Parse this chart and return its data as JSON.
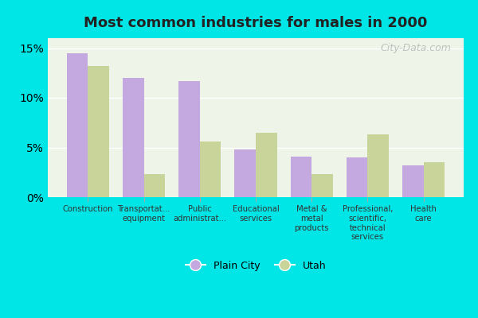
{
  "title": "Most common industries for males in 2000",
  "categories": [
    "Construction",
    "Transportat...\nequipment",
    "Public\nadministrat...",
    "Educational\nservices",
    "Metal &\nmetal\nproducts",
    "Professional,\nscientific,\ntechnical\nservices",
    "Health\ncare"
  ],
  "plain_city_values": [
    14.5,
    12.0,
    11.7,
    4.8,
    4.1,
    4.0,
    3.2
  ],
  "utah_values": [
    13.2,
    2.3,
    5.6,
    6.5,
    2.3,
    6.3,
    3.5
  ],
  "plain_city_color": "#c4a8e0",
  "utah_color": "#c8d49a",
  "background_outer": "#00e5e5",
  "background_inner": "#eef5e8",
  "yticks": [
    0,
    5,
    10,
    15
  ],
  "ylim": [
    0,
    16
  ],
  "watermark": "City-Data.com",
  "legend_labels": [
    "Plain City",
    "Utah"
  ],
  "bar_width": 0.38
}
